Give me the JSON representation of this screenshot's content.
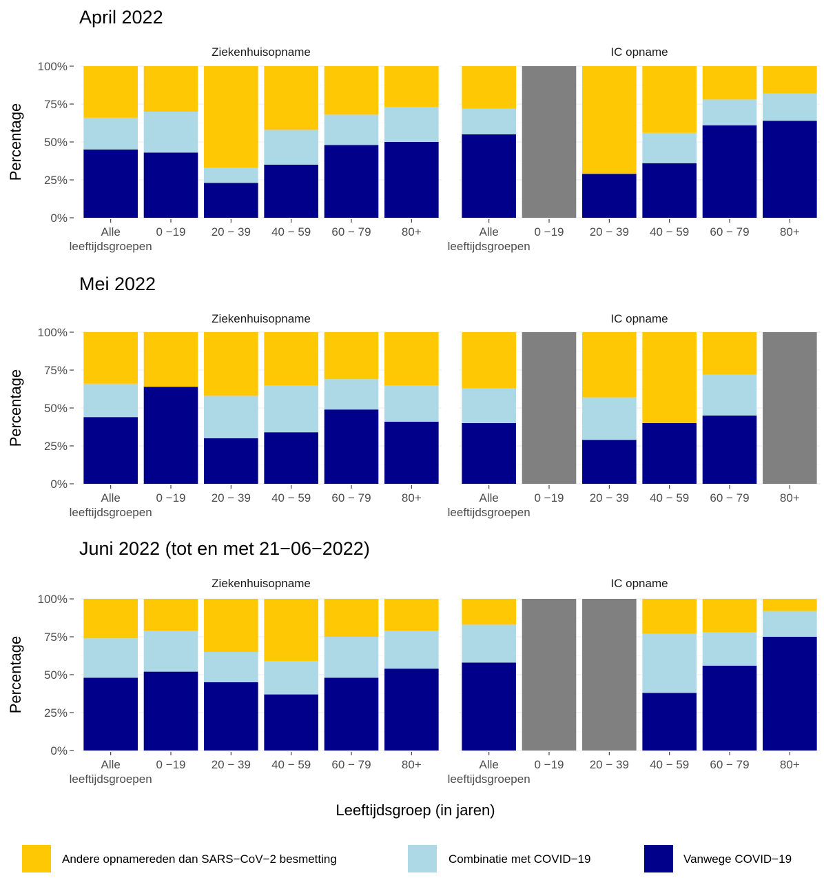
{
  "colors": {
    "Andere opnamereden dan SARS−CoV−2 besmetting": "#ffc805",
    "Combinatie met COVID−19": "#add8e6",
    "Vanwege COVID−19": "#00008b",
    "missing": "#808080",
    "grid": "#ebebeb"
  },
  "chart_data": {
    "type": "bar",
    "stacked": true,
    "ylabel": "Percentage",
    "xlabel": "Leeftijdsgroep (in jaren)",
    "ylim": [
      0,
      100
    ],
    "yticks": [
      "0%",
      "25%",
      "50%",
      "75%",
      "100%"
    ],
    "categories": [
      "Alle leeftijdsgroepen",
      "0 −19",
      "20 − 39",
      "40 − 59",
      "60 − 79",
      "80+"
    ],
    "series_names": [
      "Andere opnamereden dan SARS−CoV−2 besmetting",
      "Combinatie met COVID−19",
      "Vanwege COVID−19"
    ],
    "legend_position": "bottom",
    "grid": true,
    "panels": [
      {
        "row_title": "April 2022",
        "facets": [
          {
            "name": "Ziekenhuisopname",
            "vanwege": [
              45,
              43,
              23,
              35,
              48,
              50
            ],
            "combinatie": [
              21,
              27,
              10,
              23,
              20,
              23
            ],
            "andere": [
              34,
              30,
              67,
              42,
              32,
              27
            ]
          },
          {
            "name": "IC opname",
            "missing": [
              false,
              true,
              false,
              false,
              false,
              false
            ],
            "vanwege": [
              55,
              null,
              29,
              36,
              61,
              64
            ],
            "combinatie": [
              17,
              null,
              0,
              20,
              17,
              18
            ],
            "andere": [
              28,
              null,
              71,
              44,
              22,
              18
            ]
          }
        ]
      },
      {
        "row_title": "Mei 2022",
        "facets": [
          {
            "name": "Ziekenhuisopname",
            "vanwege": [
              44,
              64,
              30,
              34,
              49,
              41
            ],
            "combinatie": [
              22,
              0,
              28,
              31,
              20,
              24
            ],
            "andere": [
              34,
              36,
              42,
              35,
              31,
              35
            ]
          },
          {
            "name": "IC opname",
            "missing": [
              false,
              true,
              false,
              false,
              false,
              true
            ],
            "vanwege": [
              40,
              null,
              29,
              40,
              45,
              null
            ],
            "combinatie": [
              23,
              null,
              28,
              0,
              27,
              null
            ],
            "andere": [
              37,
              null,
              43,
              60,
              28,
              null
            ]
          }
        ]
      },
      {
        "row_title": "Juni 2022 (tot en met 21−06−2022)",
        "facets": [
          {
            "name": "Ziekenhuisopname",
            "vanwege": [
              48,
              52,
              45,
              37,
              48,
              54
            ],
            "combinatie": [
              26,
              27,
              20,
              22,
              27,
              25
            ],
            "andere": [
              26,
              21,
              35,
              41,
              25,
              21
            ]
          },
          {
            "name": "IC opname",
            "missing": [
              false,
              true,
              true,
              false,
              false,
              false
            ],
            "vanwege": [
              58,
              null,
              null,
              38,
              56,
              75
            ],
            "combinatie": [
              25,
              null,
              null,
              39,
              22,
              17
            ],
            "andere": [
              17,
              null,
              null,
              23,
              22,
              8
            ]
          }
        ]
      }
    ]
  }
}
